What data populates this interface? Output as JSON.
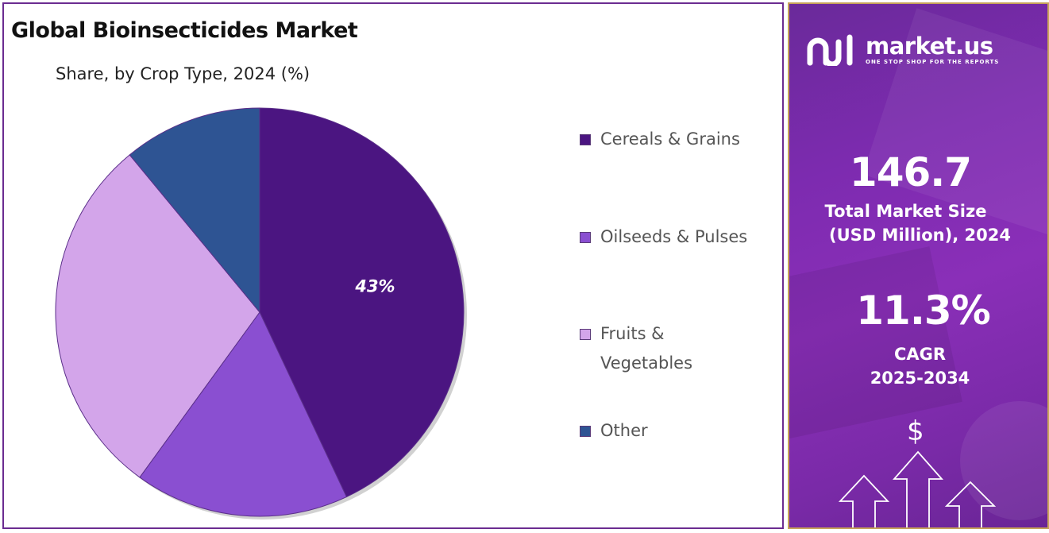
{
  "chart_data": {
    "type": "pie",
    "title": "Global Bioinsecticides Market",
    "subtitle": "Share, by Crop Type, 2024 (%)",
    "categories": [
      "Cereals & Grains",
      "Oilseeds & Pulses",
      "Fruits & Vegetables",
      "Other"
    ],
    "values": [
      43,
      17,
      29,
      11
    ],
    "colors": [
      "#4b1581",
      "#8a4fd1",
      "#d3a5ea",
      "#2e5493"
    ],
    "data_labels": [
      "43%",
      "",
      "",
      ""
    ],
    "start_angle_deg": 0,
    "direction": "clockwise",
    "legend_position": "right"
  },
  "legend": {
    "items": [
      {
        "label": "Cereals & Grains",
        "color": "#4b1581"
      },
      {
        "label": "Oilseeds & Pulses",
        "color": "#8a4fd1"
      },
      {
        "label": "Fruits &",
        "label2": "Vegetables",
        "color": "#d3a5ea"
      },
      {
        "label": "Other",
        "color": "#2e5493"
      }
    ]
  },
  "info_panel": {
    "logo": {
      "name": "market.us",
      "tagline": "ONE STOP SHOP FOR THE REPORTS",
      "icon": "market-us-logo-icon"
    },
    "market_size": {
      "value": "146.7",
      "label_line1": "Total Market Size",
      "label_line2": "(USD Million), 2024"
    },
    "cagr": {
      "value": "11.3%",
      "label_line1": "CAGR",
      "label_line2": "2025-2034"
    },
    "icons": {
      "dollar": "$",
      "arrows": "growth-arrows-icon"
    },
    "colors": {
      "gradient_start": "#6a2a9a",
      "gradient_end": "#8a2fb8",
      "border": "#c7a35a"
    }
  }
}
